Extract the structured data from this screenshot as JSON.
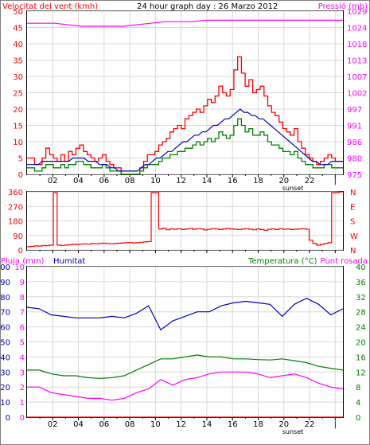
{
  "panels": {
    "wind": {
      "left_label": "Velocitat del vent (kmh)",
      "title": "24 hour graph day : 26 Marzo 2012",
      "right_label": "Pressió (mb)"
    },
    "direction": {},
    "humidity": {
      "left_label_1": "Pluja (mm)",
      "left_label_2": "Humitat",
      "right_label_1": "Temperatura (°C)",
      "right_label_2": "Punt rosada"
    }
  },
  "markers": {
    "sunset": "sunset"
  },
  "colors": {
    "wind_gust": "#ff0000",
    "wind_avg": "#008000",
    "wind_trend": "#0000c0",
    "pressure": "#ff00ff",
    "humidity": "#0000c0",
    "temperature": "#008000",
    "dewpoint": "#ff00ff",
    "rain": "#ff0000",
    "direction": "#ff0000",
    "grid": "#d8d8d8",
    "frame": "#000000",
    "left_axis": "#ff0000",
    "right_axis": "#ff00ff",
    "temp_axis": "#008000",
    "hum_axis": "#0000c0"
  },
  "chart_data": [
    {
      "id": "wind-pressure",
      "type": "bar",
      "x_ticks": [
        "02",
        "04",
        "06",
        "08",
        "10",
        "12",
        "14",
        "16",
        "18",
        "20",
        "22",
        "|"
      ],
      "y_left": {
        "label": "Velocitat del vent (kmh)",
        "ticks": [
          0,
          5,
          10,
          15,
          20,
          25,
          30,
          35,
          40,
          45,
          50
        ],
        "lim": [
          0,
          50
        ]
      },
      "y_right": {
        "label": "Pressió (mb)",
        "ticks": [
          975,
          980,
          986,
          991,
          997,
          1002,
          1007,
          1013,
          1018,
          1024,
          1029
        ],
        "lim": [
          975,
          1029
        ]
      },
      "series": [
        {
          "name": "Velocitat del vent (kmh)",
          "kind": "gust",
          "values": [
            5,
            5,
            3,
            3,
            5,
            8,
            6,
            5,
            4,
            6,
            4,
            7,
            6,
            8,
            9,
            7,
            6,
            5,
            4,
            5,
            6,
            4,
            3,
            2,
            2,
            0,
            0,
            0,
            0,
            0,
            2,
            4,
            6,
            6,
            7,
            9,
            10,
            11,
            13,
            14,
            15,
            14,
            17,
            18,
            19,
            20,
            19,
            21,
            23,
            22,
            24,
            27,
            25,
            24,
            26,
            32,
            36,
            31,
            27,
            29,
            25,
            26,
            27,
            24,
            21,
            19,
            18,
            16,
            14,
            13,
            12,
            14,
            10,
            8,
            6,
            5,
            4,
            3,
            4,
            5,
            6,
            5,
            4,
            4
          ]
        },
        {
          "name": "",
          "kind": "average",
          "values": [
            2,
            2,
            1,
            1,
            2,
            3,
            3,
            2,
            2,
            3,
            2,
            3,
            3,
            4,
            4,
            3,
            3,
            2,
            2,
            2,
            3,
            2,
            1,
            1,
            1,
            0,
            0,
            0,
            0,
            0,
            1,
            2,
            3,
            3,
            3,
            4,
            5,
            5,
            6,
            6,
            7,
            7,
            8,
            8,
            9,
            10,
            9,
            10,
            11,
            10,
            11,
            13,
            12,
            11,
            12,
            15,
            17,
            15,
            13,
            14,
            12,
            12,
            13,
            12,
            10,
            9,
            9,
            8,
            7,
            7,
            6,
            7,
            5,
            4,
            3,
            3,
            2,
            2,
            2,
            3,
            3,
            2,
            2,
            2
          ]
        },
        {
          "name": "",
          "kind": "trend",
          "values": [
            3,
            3,
            3,
            3,
            4,
            4,
            4,
            4,
            4,
            4,
            4,
            4,
            5,
            5,
            5,
            5,
            4,
            4,
            4,
            3,
            3,
            3,
            2,
            2,
            1,
            1,
            1,
            1,
            1,
            1,
            2,
            3,
            3,
            4,
            5,
            5,
            6,
            7,
            7,
            8,
            9,
            10,
            10,
            11,
            12,
            12,
            13,
            13,
            14,
            15,
            15,
            16,
            17,
            17,
            18,
            19,
            20,
            19,
            19,
            18,
            18,
            17,
            17,
            16,
            15,
            14,
            13,
            12,
            11,
            10,
            9,
            8,
            7,
            6,
            5,
            4,
            4,
            3,
            3,
            3,
            4,
            4,
            4,
            4
          ]
        },
        {
          "name": "Pressió (mb)",
          "kind": "pressure",
          "values": [
            1025,
            1025,
            1025,
            1024.5,
            1024,
            1024,
            1024,
            1024,
            1024.5,
            1025,
            1025.5,
            1025.5,
            1025.5,
            1026,
            1026,
            1026,
            1026,
            1026,
            1026,
            1026,
            1026,
            1026,
            1026,
            1026
          ]
        }
      ]
    },
    {
      "id": "wind-direction",
      "type": "line",
      "x_ticks": [
        "02",
        "04",
        "06",
        "08",
        "10",
        "12",
        "14",
        "16",
        "18",
        "20",
        "22",
        "|"
      ],
      "y_left": {
        "ticks": [
          0,
          90,
          180,
          270,
          360
        ],
        "lim": [
          0,
          360
        ]
      },
      "y_right": {
        "ticks": [
          "N",
          "W",
          "S",
          "E",
          "N"
        ]
      },
      "series": [
        {
          "name": "",
          "values": [
            20,
            22,
            25,
            24,
            28,
            26,
            30,
            355,
            30,
            28,
            30,
            32,
            35,
            34,
            36,
            38,
            36,
            40,
            38,
            40,
            42,
            40,
            38,
            40,
            42,
            44,
            45,
            46,
            44,
            45,
            48,
            50,
            52,
            355,
            355,
            130,
            135,
            125,
            130,
            128,
            132,
            126,
            130,
            134,
            128,
            132,
            130,
            124,
            128,
            132,
            130,
            126,
            130,
            134,
            130,
            128,
            126,
            130,
            132,
            128,
            125,
            130,
            126,
            122,
            128,
            130,
            126,
            132,
            128,
            130,
            126,
            128,
            130,
            132,
            128,
            60,
            40,
            30,
            35,
            40,
            45,
            355,
            355,
            360
          ]
        }
      ]
    },
    {
      "id": "humidity-temperature",
      "type": "line",
      "x_ticks": [
        "02",
        "04",
        "06",
        "08",
        "10",
        "12",
        "14",
        "16",
        "18",
        "20",
        "22",
        "|"
      ],
      "y_left_pluja": {
        "label": "Pluja (mm)",
        "ticks": [
          0,
          1,
          2,
          3,
          4,
          5,
          6,
          7,
          8,
          9,
          10
        ],
        "lim": [
          0,
          10
        ]
      },
      "y_left_humitat": {
        "label": "Humitat",
        "ticks": [
          0,
          10,
          20,
          30,
          40,
          50,
          60,
          70,
          80,
          90,
          100
        ],
        "lim": [
          0,
          100
        ]
      },
      "y_right": {
        "label": "Temperatura (°C)",
        "ticks": [
          0,
          4,
          8,
          12,
          16,
          20,
          24,
          28,
          32,
          36,
          40
        ],
        "lim": [
          0,
          40
        ]
      },
      "series": [
        {
          "name": "Pluja (mm)",
          "axis": "pluja",
          "values": [
            0,
            0,
            0,
            0,
            0,
            0,
            0,
            0,
            0,
            0,
            0,
            0,
            0,
            0,
            0,
            0,
            0,
            0,
            0,
            0,
            0,
            0,
            0,
            0,
            0
          ]
        },
        {
          "name": "Humitat",
          "axis": "humitat",
          "values": [
            73,
            72,
            68,
            67,
            66,
            66,
            66,
            67,
            66,
            69,
            74,
            58,
            64,
            67,
            70,
            70,
            74,
            76,
            77,
            76,
            75,
            67,
            75,
            79,
            75,
            68,
            72
          ]
        },
        {
          "name": "Temperatura (°C)",
          "axis": "temp",
          "values": [
            12.5,
            12.5,
            11.5,
            11,
            11,
            10.5,
            10.3,
            10.5,
            11,
            12.5,
            14,
            15.5,
            15.5,
            16,
            16.5,
            16,
            16,
            15.5,
            15.5,
            15.3,
            15.2,
            15.5,
            15,
            14.5,
            13.5,
            13,
            12.5
          ]
        },
        {
          "name": "Punt rosada",
          "axis": "temp",
          "values": [
            8,
            8,
            6.5,
            6,
            5.5,
            5,
            5,
            4.5,
            5,
            6.5,
            7.5,
            10,
            8.5,
            10,
            10.5,
            11.5,
            12,
            12,
            12,
            11.5,
            10.5,
            11,
            11.5,
            10.5,
            9,
            8,
            7.5
          ]
        }
      ]
    }
  ]
}
